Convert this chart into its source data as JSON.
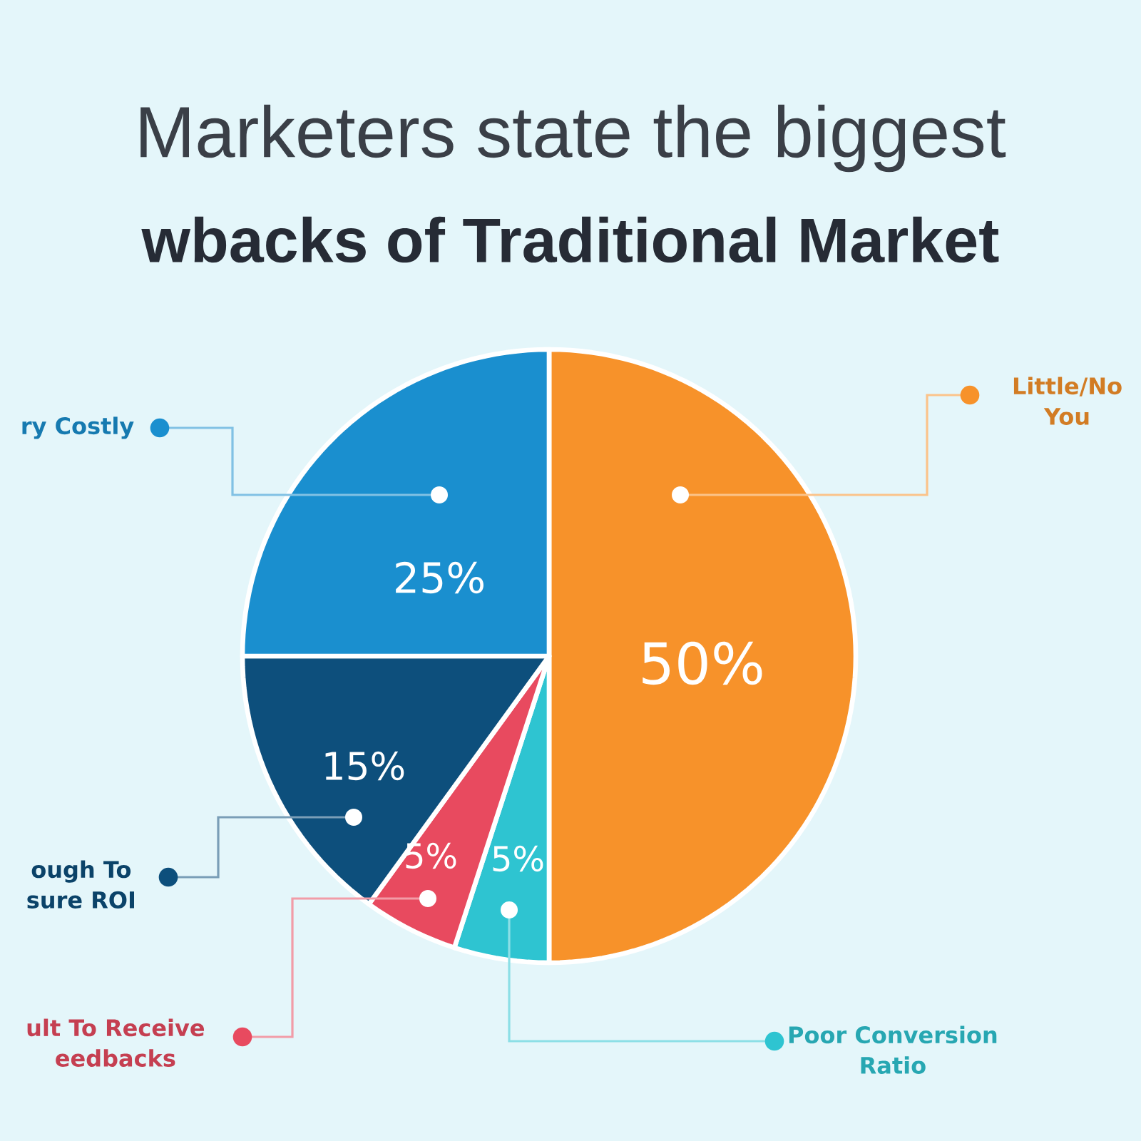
{
  "chart_data": {
    "type": "pie",
    "title": "Marketers state the biggest",
    "subtitle": "wbacks of Traditional Market",
    "categories": [
      "Little/No You",
      "Poor Conversion Ratio",
      "ult To Receive eedbacks",
      "ough To sure ROI",
      "ry Costly"
    ],
    "values": [
      50,
      5,
      5,
      15,
      25
    ],
    "colors": [
      "#f7922a",
      "#2ec4d1",
      "#e84a5f",
      "#0d4f7c",
      "#1a8fcf"
    ],
    "value_labels": [
      "50%",
      "5%",
      "5%",
      "15%",
      "25%"
    ],
    "legend": "left"
  }
}
